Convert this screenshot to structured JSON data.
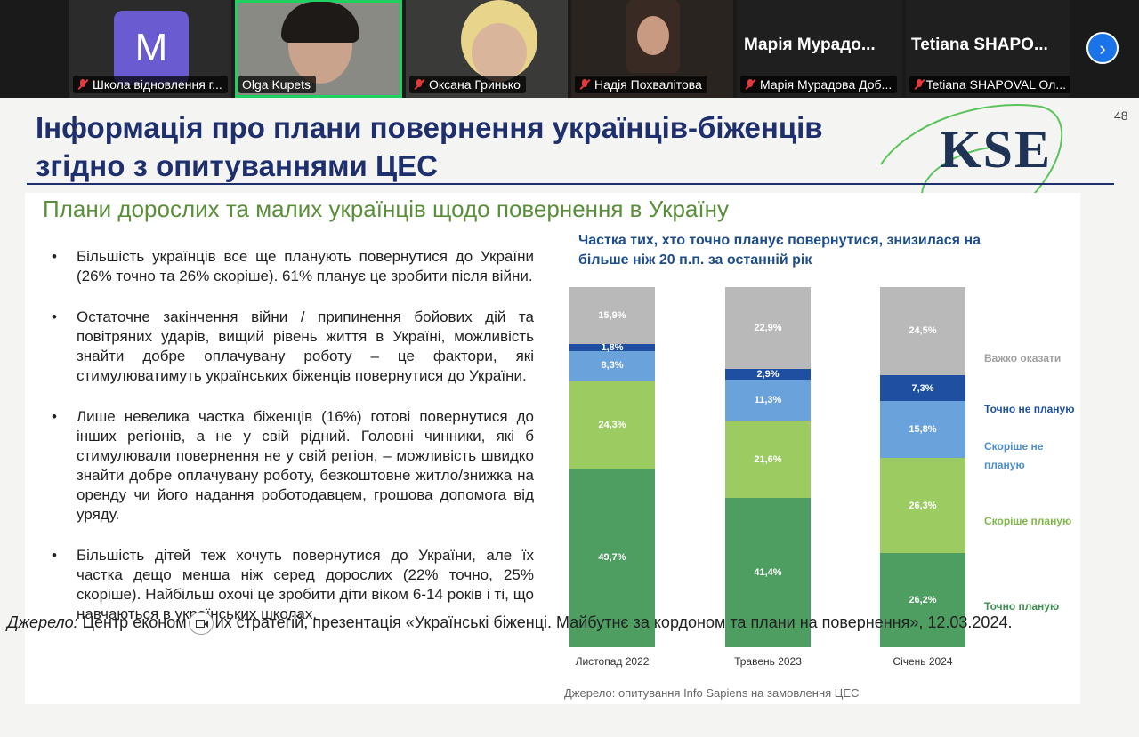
{
  "meeting": {
    "participants": [
      {
        "name": "Школа відновлення г...",
        "muted": true,
        "avatar_letter": "M"
      },
      {
        "name": "Olga Kupets",
        "muted": false
      },
      {
        "name": "Оксана Гринько",
        "muted": true
      },
      {
        "name": "Надія Похвалітова",
        "muted": true
      },
      {
        "name": "Марія Мурадова Доб...",
        "muted": true,
        "display_name": "Марія Мурадо..."
      },
      {
        "name": "Tetiana SHAPOVAL Ол...",
        "muted": true,
        "display_name": "Tetiana SHAPO..."
      }
    ],
    "next_icon": "chevron-right-icon"
  },
  "slide": {
    "title": "Інформація про плани повернення українців-біженців згідно з опитуваннями ЦЕС",
    "page_number": "48",
    "logo": "KSE",
    "subtitle": "Плани дорослих та малих українців щодо повернення в Україну",
    "bullets": [
      "Більшість українців все ще планують повернутися до України (26% точно та 26% скоріше). 61% планує це зробити після війни.",
      "Остаточне закінчення війни / припинення бойових дій та повітряних ударів, вищий рівень життя в Україні, можливість знайти добре оплачувану роботу – це фактори, які стимулюватимуть українських біженців повернутися до України.",
      "Лише невелика частка біженців (16%) готові повернутися до інших регіонів, а не у свій рідний. Головні чинники, які б стимулювали повернення не у свій регіон, – можливість швидко знайти добре оплачувану роботу, безкоштовне житло/знижка на оренду чи його надання роботодавцем, грошова допомога від уряду.",
      "Більшість дітей теж хочуть повернутися до України, але їх частка дещо менша ніж серед дорослих (22% точно, 25% скоріше). Найбільш охочі це зробити діти віком 6-14 років і ті, що навчаються в українських школах."
    ],
    "chart_source": "Джерело: опитування Info Sapiens на замовлення ЦЕС"
  },
  "chart_data": {
    "type": "bar",
    "stacked": true,
    "title": "Частка тих, хто точно планує повернутися, знизилася на більше ніж 20 п.п. за останній рік",
    "categories": [
      "Листопад 2022",
      "Травень 2023",
      "Січень 2024"
    ],
    "ylim": [
      0,
      100
    ],
    "series": [
      {
        "name": "Точно планую",
        "color": "#4e9e62",
        "text_color": "#3f8f52",
        "label_color": "#ffffff",
        "values": [
          49.7,
          41.4,
          26.2
        ],
        "labels": [
          "49,7%",
          "41,4%",
          "26,2%"
        ]
      },
      {
        "name": "Скоріше планую",
        "color": "#9ccb62",
        "text_color": "#7fb84a",
        "label_color": "#ffffff",
        "values": [
          24.3,
          21.6,
          26.3
        ],
        "labels": [
          "24,3%",
          "21,6%",
          "26,3%"
        ]
      },
      {
        "name": "Скоріше не планую",
        "color": "#6aa2db",
        "text_color": "#4f8fd0",
        "label_color": "#ffffff",
        "values": [
          8.3,
          11.3,
          15.8
        ],
        "labels": [
          "8,3%",
          "11,3%",
          "15,8%"
        ]
      },
      {
        "name": "Точно не планую",
        "color": "#1e4fa0",
        "text_color": "#1e4fa0",
        "label_color": "#ffffff",
        "values": [
          1.8,
          2.9,
          7.3
        ],
        "labels": [
          "1,8%",
          "2,9%",
          "7,3%"
        ]
      },
      {
        "name": "Важко оказати",
        "color": "#b9b9b9",
        "text_color": "#a0a0a0",
        "label_color": "#ffffff",
        "values": [
          15.9,
          22.9,
          24.5
        ],
        "labels": [
          "15,9%",
          "22,9%",
          "24,5%"
        ]
      }
    ],
    "legend_placement": "right"
  },
  "footer": {
    "label": "Джерело:",
    "text_before": "Центр економ",
    "text_after": "их стратегій, презентація «Українські біженці. Майбутнє за кордоном та плани на повернення», 12.03.2024."
  }
}
